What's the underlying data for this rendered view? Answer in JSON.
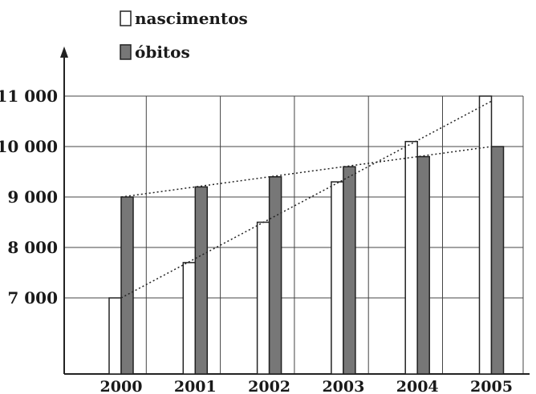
{
  "chart_data": {
    "type": "bar",
    "title": "",
    "xlabel": "",
    "ylabel": "",
    "categories": [
      "2000",
      "2001",
      "2002",
      "2003",
      "2004",
      "2005"
    ],
    "series": [
      {
        "name": "nascimentos",
        "values": [
          7000,
          7700,
          8500,
          9300,
          10100,
          11000
        ],
        "color": "#ffffff"
      },
      {
        "name": "óbitos",
        "values": [
          9000,
          9200,
          9400,
          9600,
          9800,
          10000
        ],
        "color": "#777777"
      }
    ],
    "yticks": [
      7000,
      8000,
      9000,
      10000,
      11000
    ],
    "ytick_labels": [
      "7 000",
      "8 000",
      "9 000",
      "10 000",
      "11 000"
    ],
    "trend_lines": [
      {
        "series": "nascimentos",
        "from": [
          "2000",
          7000
        ],
        "to": [
          "2005",
          10900
        ],
        "style": "dotted"
      },
      {
        "series": "óbitos",
        "from": [
          "2000",
          9000
        ],
        "to": [
          "2005",
          10000
        ],
        "style": "dotted"
      }
    ],
    "grid": true,
    "legend_position": "top-left"
  }
}
